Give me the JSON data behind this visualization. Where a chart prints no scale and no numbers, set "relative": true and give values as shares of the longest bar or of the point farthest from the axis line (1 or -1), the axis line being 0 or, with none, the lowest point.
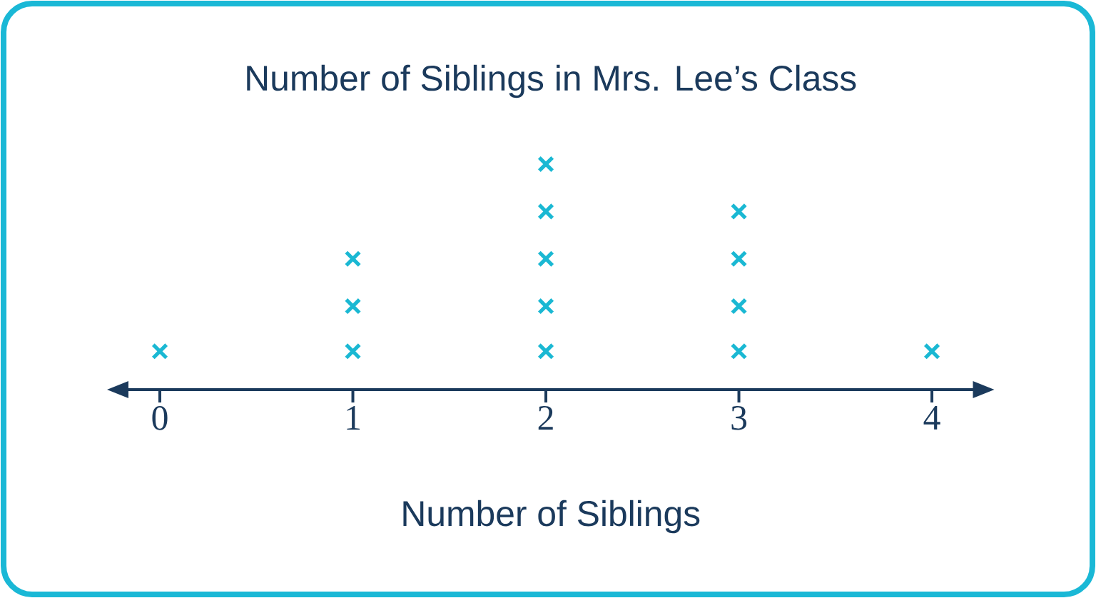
{
  "chart_data": {
    "type": "scatter",
    "title": "Number of Siblings in Mrs. Lee’s Class",
    "xlabel": "Number of Siblings",
    "x": [
      0,
      1,
      1,
      1,
      2,
      2,
      2,
      2,
      2,
      3,
      3,
      3,
      3,
      4
    ],
    "values": [
      0.17,
      0.17,
      0.37,
      0.58,
      0.17,
      0.37,
      0.58,
      0.79,
      1,
      0.17,
      0.37,
      0.58,
      0.79,
      0.17
    ],
    "relative": true,
    "color": "#1ab8d3",
    "marker": "cross",
    "xlim": [
      -0.17,
      4.22
    ],
    "xticks": [
      0,
      1,
      2,
      3,
      4
    ],
    "tick_labels": "x"
  }
}
